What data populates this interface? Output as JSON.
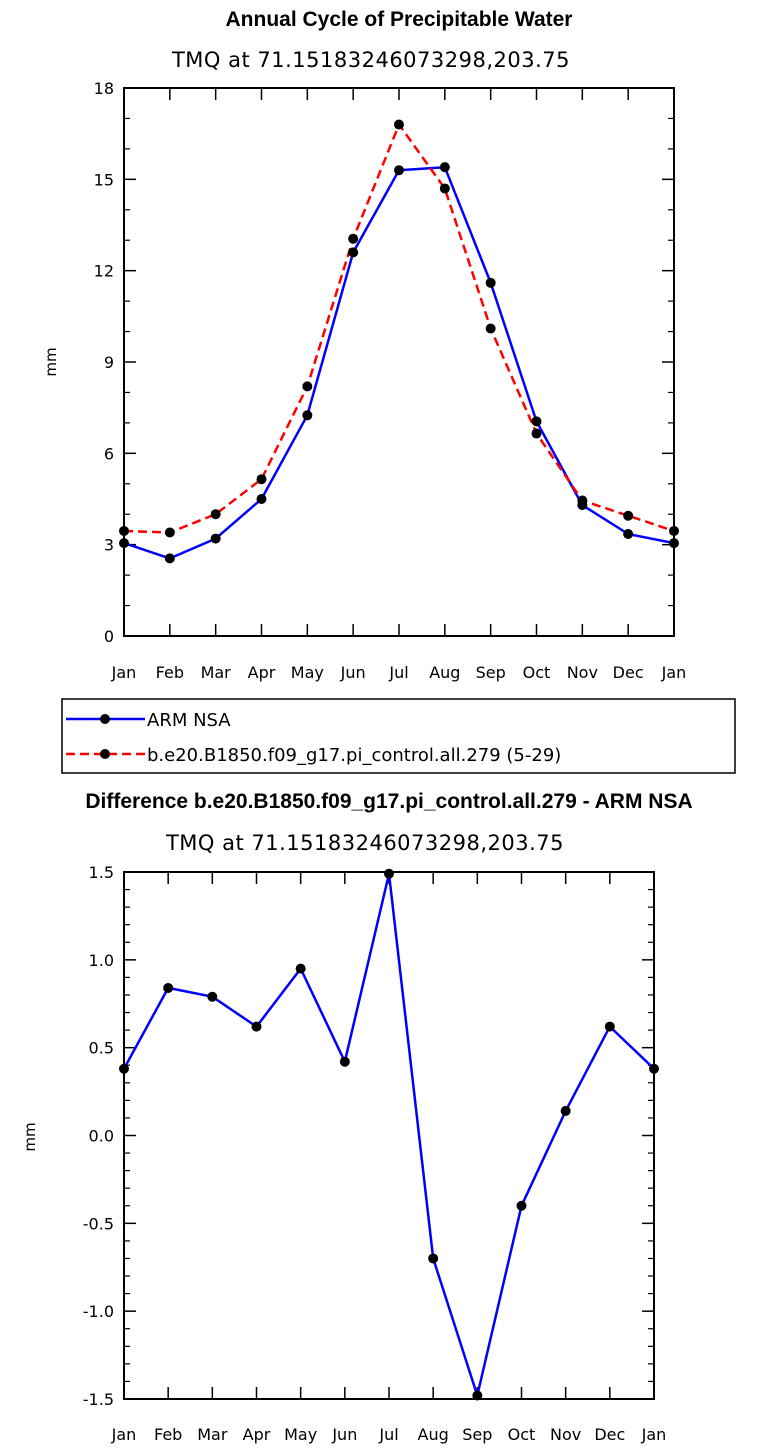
{
  "chart_data": [
    {
      "type": "line",
      "title": "Annual Cycle of Precipitable Water",
      "subtitle": "TMQ at 71.15183246073298,203.75",
      "xlabel": "",
      "ylabel": "mm",
      "categories": [
        "Jan",
        "Feb",
        "Mar",
        "Apr",
        "May",
        "Jun",
        "Jul",
        "Aug",
        "Sep",
        "Oct",
        "Nov",
        "Dec",
        "Jan"
      ],
      "ylim": [
        0,
        18
      ],
      "yticks": [
        0,
        3,
        6,
        9,
        12,
        15,
        18
      ],
      "ytick_labels": [
        "0",
        "3",
        "6",
        "9",
        "12",
        "15",
        "18"
      ],
      "grid": false,
      "legend_position": "below",
      "series": [
        {
          "name": "ARM NSA",
          "color": "#0000ff",
          "dash": "solid",
          "values": [
            3.05,
            2.55,
            3.2,
            4.5,
            7.25,
            12.6,
            15.3,
            15.4,
            11.6,
            7.05,
            4.3,
            3.35,
            3.05
          ]
        },
        {
          "name": "b.e20.B1850.f09_g17.pi_control.all.279 (5-29)",
          "color": "#ff0000",
          "dash": "dashed",
          "values": [
            3.45,
            3.4,
            4.0,
            5.15,
            8.2,
            13.05,
            16.8,
            14.7,
            10.1,
            6.65,
            4.45,
            3.95,
            3.45
          ]
        }
      ]
    },
    {
      "type": "line",
      "title": "Difference b.e20.B1850.f09_g17.pi_control.all.279 - ARM NSA",
      "subtitle": "TMQ at 71.15183246073298,203.75",
      "xlabel": "",
      "ylabel": "mm",
      "categories": [
        "Jan",
        "Feb",
        "Mar",
        "Apr",
        "May",
        "Jun",
        "Jul",
        "Aug",
        "Sep",
        "Oct",
        "Nov",
        "Dec",
        "Jan"
      ],
      "ylim": [
        -1.5,
        1.5
      ],
      "yticks": [
        -1.5,
        -1.0,
        -0.5,
        0.0,
        0.5,
        1.0,
        1.5
      ],
      "ytick_labels": [
        "-1.5",
        "-1.0",
        "-0.5",
        "0.0",
        "0.5",
        "1.0",
        "1.5"
      ],
      "grid": false,
      "series": [
        {
          "color": "#0000ff",
          "dash": "solid",
          "values": [
            0.38,
            0.84,
            0.79,
            0.62,
            0.95,
            0.42,
            1.49,
            -0.7,
            -1.48,
            -0.4,
            0.14,
            0.62,
            0.38
          ]
        }
      ]
    }
  ]
}
